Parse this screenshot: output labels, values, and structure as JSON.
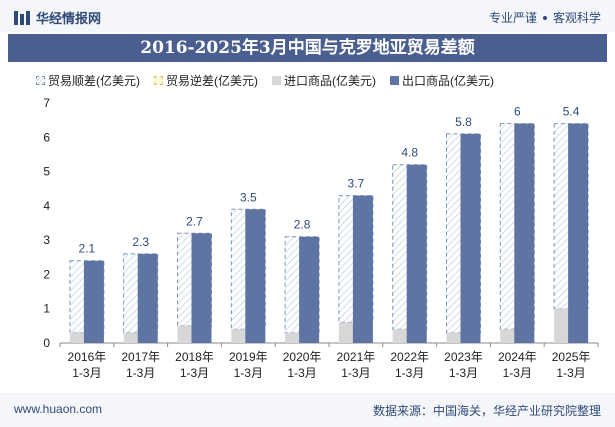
{
  "header": {
    "brand": "华经情报网",
    "tagline_left": "专业严谨",
    "tagline_right": "客观科学"
  },
  "title": "2016-2025年3月中国与克罗地亚贸易差额",
  "legend": {
    "deficit": "贸易顺差(亿美元)",
    "surplus": "贸易逆差(亿美元)",
    "import": "进口商品(亿美元)",
    "export": "出口商品(亿美元)"
  },
  "footer": {
    "site": "www.huaon.com",
    "source": "数据来源：中国海关，华经产业研究院整理"
  },
  "colors": {
    "export": "#5e74a3",
    "import": "#d7d7d7",
    "deficit_border": "#7f95b8",
    "title_bg": "#4a5f8f"
  },
  "chart_data": {
    "type": "bar",
    "categories": [
      [
        "2016年",
        "1-3月"
      ],
      [
        "2017年",
        "1-3月"
      ],
      [
        "2018年",
        "1-3月"
      ],
      [
        "2019年",
        "1-3月"
      ],
      [
        "2020年",
        "1-3月"
      ],
      [
        "2021年",
        "1-3月"
      ],
      [
        "2022年",
        "1-3月"
      ],
      [
        "2023年",
        "1-3月"
      ],
      [
        "2024年",
        "1-3月"
      ],
      [
        "2025年",
        "1-3月"
      ]
    ],
    "series": [
      {
        "name": "贸易顺差(亿美元)",
        "values": [
          2.1,
          2.3,
          2.7,
          3.5,
          2.8,
          3.7,
          4.8,
          5.8,
          6,
          5.4
        ]
      },
      {
        "name": "进口商品(亿美元)",
        "values": [
          0.3,
          0.3,
          0.5,
          0.4,
          0.3,
          0.6,
          0.4,
          0.3,
          0.4,
          1.0
        ]
      },
      {
        "name": "出口商品(亿美元)",
        "values": [
          2.4,
          2.6,
          3.2,
          3.9,
          3.1,
          4.3,
          5.2,
          6.1,
          6.4,
          6.4
        ]
      }
    ],
    "data_labels": [
      "2.1",
      "2.3",
      "2.7",
      "3.5",
      "2.8",
      "3.7",
      "4.8",
      "5.8",
      "6",
      "5.4"
    ],
    "ylim": [
      0,
      7
    ],
    "yticks": [
      0,
      1,
      2,
      3,
      4,
      5,
      6,
      7
    ],
    "grid": false,
    "legend_position": "top-left"
  }
}
